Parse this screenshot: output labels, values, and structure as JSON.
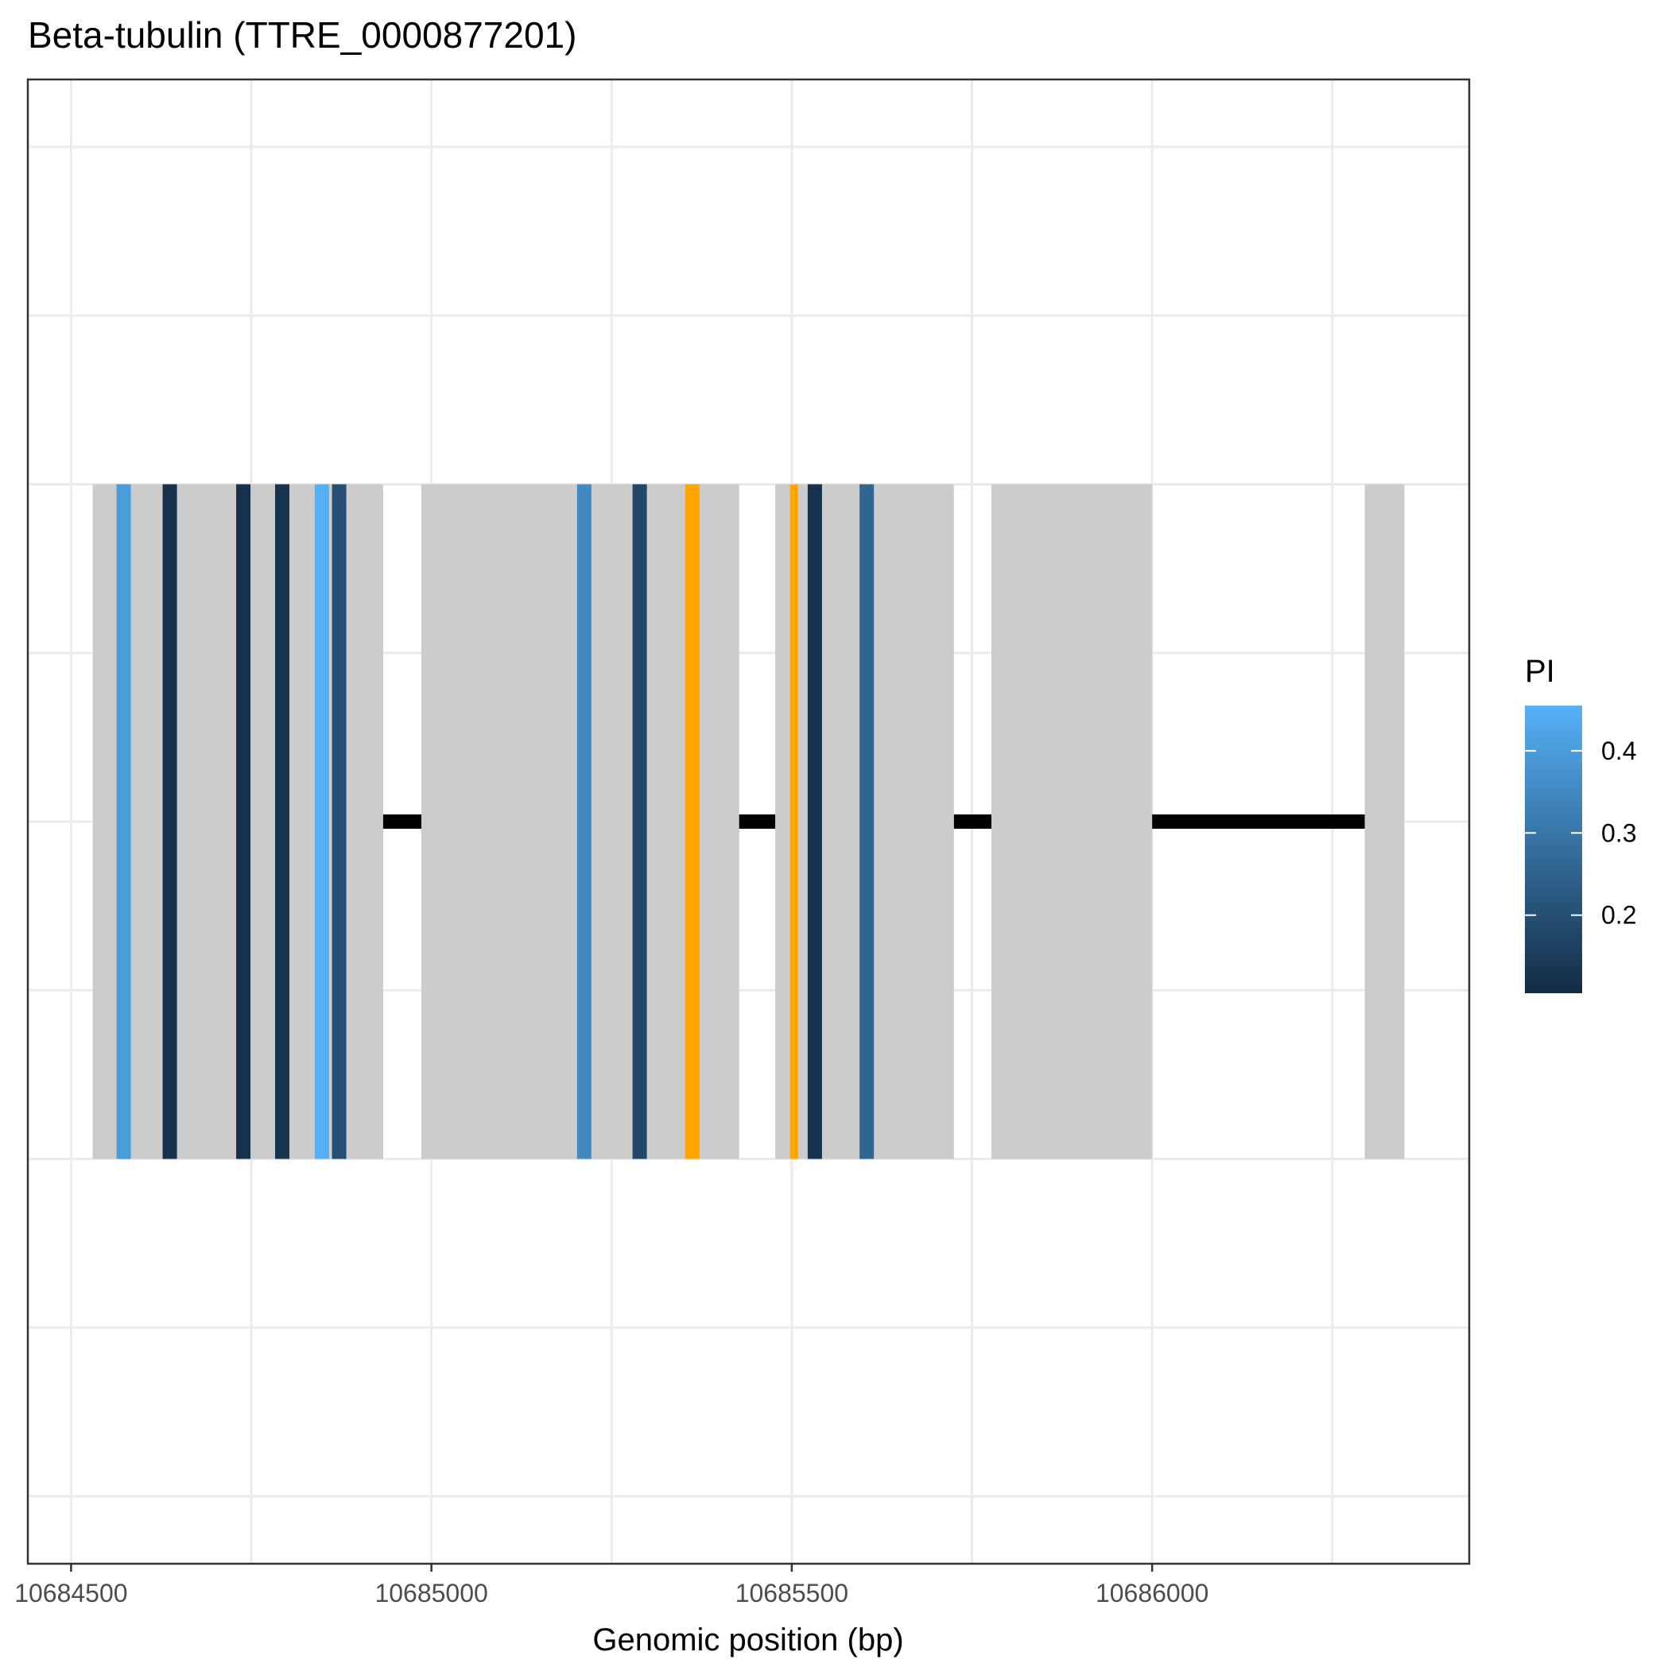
{
  "chart_data": {
    "type": "gene-structure",
    "title": "Beta-tubulin (TTRE_0000877201)",
    "xlabel": "Genomic position (bp)",
    "ylabel": "",
    "xlim": [
      10684440,
      10686440
    ],
    "ylim": [
      -2.2,
      2.2
    ],
    "x_ticks": [
      10684500,
      10685000,
      10685500,
      10686000
    ],
    "x_tick_labels": [
      "10684500",
      "10685000",
      "10685500",
      "10686000"
    ],
    "grid": true,
    "gene_line": {
      "start": 10684530,
      "end": 10686290,
      "y": 0,
      "color": "#000000"
    },
    "exons": [
      {
        "start": 10684530,
        "end": 10684933,
        "color": "#cccccc"
      },
      {
        "start": 10684986,
        "end": 10685427,
        "color": "#cccccc"
      },
      {
        "start": 10685477,
        "end": 10685725,
        "color": "#cccccc"
      },
      {
        "start": 10685777,
        "end": 10686000,
        "color": "#cccccc"
      },
      {
        "start": 10686295,
        "end": 10686350,
        "color": "#cccccc"
      }
    ],
    "exon_y_range": [
      -1,
      1
    ],
    "variants": [
      {
        "position": 10684573,
        "pi": 0.4
      },
      {
        "position": 10684637,
        "pi": 0.12
      },
      {
        "position": 10684739,
        "pi": 0.12
      },
      {
        "position": 10684793,
        "pi": 0.13
      },
      {
        "position": 10684848,
        "pi": 0.45
      },
      {
        "position": 10684872,
        "pi": 0.2
      },
      {
        "position": 10685212,
        "pi": 0.35
      },
      {
        "position": 10685289,
        "pi": 0.18
      },
      {
        "position": 10685362,
        "special": "orange"
      },
      {
        "position": 10685503,
        "special": "orange"
      },
      {
        "position": 10685532,
        "pi": 0.12
      },
      {
        "position": 10685604,
        "pi": 0.26
      }
    ],
    "special_variant_color": "#ffa500",
    "legend": {
      "title": "PI",
      "placement": "right",
      "min": 0.105,
      "max": 0.455,
      "ticks": [
        0.2,
        0.3,
        0.4
      ],
      "tick_labels": [
        "0.2",
        "0.3",
        "0.4"
      ],
      "color_low": "#132b43",
      "color_high": "#56b1f7"
    }
  }
}
